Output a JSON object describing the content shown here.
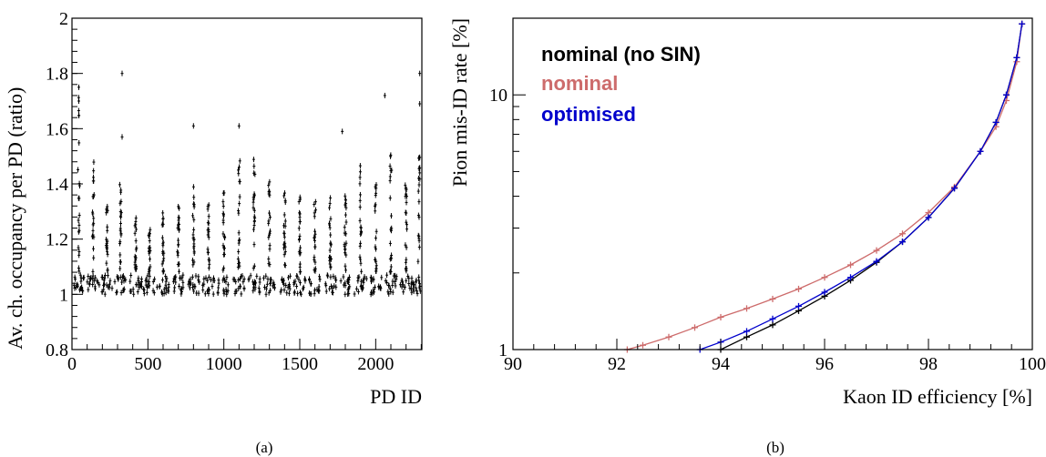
{
  "chart_data": [
    {
      "type": "scatter",
      "panel": "(a)",
      "xlabel": "PD ID",
      "ylabel": "Av. ch. occupancy per PD (ratio)",
      "xlim": [
        0,
        2304
      ],
      "ylim": [
        0.8,
        2.0
      ],
      "x_ticks": [
        0,
        500,
        1000,
        1500,
        2000
      ],
      "y_ticks": [
        0.8,
        1,
        1.2,
        1.4,
        1.6,
        1.8,
        2
      ],
      "y_tick_labels": [
        "0.8",
        "1",
        "1.2",
        "1.4",
        "1.6",
        "1.8",
        "2"
      ],
      "x_tick_labels": [
        "0",
        "500",
        "1000",
        "1500",
        "2000"
      ],
      "grid": false,
      "marker": "point with error bars",
      "groups": [
        {
          "x_center": 45,
          "y_low": 1.0,
          "y_high": 1.75
        },
        {
          "x_center": 140,
          "y_low": 1.0,
          "y_high": 1.48
        },
        {
          "x_center": 230,
          "y_low": 1.0,
          "y_high": 1.32
        },
        {
          "x_center": 320,
          "y_low": 1.0,
          "y_high": 1.4
        },
        {
          "x_center": 420,
          "y_low": 1.0,
          "y_high": 1.28
        },
        {
          "x_center": 510,
          "y_low": 1.0,
          "y_high": 1.24
        },
        {
          "x_center": 600,
          "y_low": 1.0,
          "y_high": 1.3
        },
        {
          "x_center": 700,
          "y_low": 1.0,
          "y_high": 1.32
        },
        {
          "x_center": 800,
          "y_low": 1.0,
          "y_high": 1.4
        },
        {
          "x_center": 900,
          "y_low": 1.0,
          "y_high": 1.34
        },
        {
          "x_center": 1000,
          "y_low": 1.0,
          "y_high": 1.4
        },
        {
          "x_center": 1100,
          "y_low": 1.0,
          "y_high": 1.5
        },
        {
          "x_center": 1200,
          "y_low": 1.0,
          "y_high": 1.5
        },
        {
          "x_center": 1300,
          "y_low": 1.0,
          "y_high": 1.42
        },
        {
          "x_center": 1400,
          "y_low": 1.0,
          "y_high": 1.4
        },
        {
          "x_center": 1500,
          "y_low": 1.0,
          "y_high": 1.36
        },
        {
          "x_center": 1600,
          "y_low": 1.0,
          "y_high": 1.34
        },
        {
          "x_center": 1700,
          "y_low": 1.0,
          "y_high": 1.36
        },
        {
          "x_center": 1800,
          "y_low": 1.0,
          "y_high": 1.4
        },
        {
          "x_center": 1900,
          "y_low": 1.0,
          "y_high": 1.5
        },
        {
          "x_center": 2000,
          "y_low": 1.0,
          "y_high": 1.4
        },
        {
          "x_center": 2100,
          "y_low": 1.0,
          "y_high": 1.52
        },
        {
          "x_center": 2200,
          "y_low": 1.0,
          "y_high": 1.4
        },
        {
          "x_center": 2285,
          "y_low": 1.0,
          "y_high": 1.52
        }
      ],
      "outliers": [
        {
          "x": 45,
          "y": 1.75
        },
        {
          "x": 45,
          "y": 1.7
        },
        {
          "x": 330,
          "y": 1.8
        },
        {
          "x": 330,
          "y": 1.57
        },
        {
          "x": 2060,
          "y": 1.72
        },
        {
          "x": 2290,
          "y": 1.8
        },
        {
          "x": 2290,
          "y": 1.69
        },
        {
          "x": 800,
          "y": 1.61
        },
        {
          "x": 1100,
          "y": 1.61
        },
        {
          "x": 1780,
          "y": 1.59
        }
      ]
    },
    {
      "type": "line",
      "panel": "(b)",
      "xlabel": "Kaon ID efficiency [%]",
      "ylabel": "Pion mis-ID rate [%]",
      "xlim": [
        90,
        100
      ],
      "ylim": [
        1,
        20
      ],
      "y_scale": "log",
      "x_ticks": [
        90,
        92,
        94,
        96,
        98,
        100
      ],
      "x_tick_labels": [
        "90",
        "92",
        "94",
        "96",
        "98",
        "100"
      ],
      "y_ticks": [
        1,
        10
      ],
      "y_tick_labels": [
        "1",
        "10"
      ],
      "grid": false,
      "legend_position": "top-left",
      "series": [
        {
          "name": "nominal (no SIN)",
          "color": "#000000",
          "x": [
            94.0,
            94.5,
            95.0,
            95.5,
            96.0,
            96.5,
            97.0,
            97.5,
            98.0,
            98.5,
            99.0,
            99.3,
            99.5,
            99.7,
            99.8
          ],
          "y": [
            1.0,
            1.12,
            1.25,
            1.42,
            1.62,
            1.87,
            2.2,
            2.65,
            3.3,
            4.3,
            6.0,
            7.8,
            10.0,
            14.0,
            19.0
          ]
        },
        {
          "name": "nominal",
          "color": "#cd6b6b",
          "x": [
            92.2,
            92.5,
            93.0,
            93.5,
            94.0,
            94.5,
            95.0,
            95.5,
            96.0,
            96.5,
            97.0,
            97.5,
            98.0,
            98.5,
            99.0,
            99.3,
            99.5,
            99.7,
            99.8
          ],
          "y": [
            1.0,
            1.04,
            1.12,
            1.22,
            1.34,
            1.45,
            1.58,
            1.73,
            1.92,
            2.15,
            2.45,
            2.85,
            3.45,
            4.35,
            6.0,
            7.5,
            9.5,
            13.5,
            19.0
          ]
        },
        {
          "name": "optimised",
          "color": "#0000cc",
          "x": [
            93.6,
            94.0,
            94.5,
            95.0,
            95.5,
            96.0,
            96.5,
            97.0,
            97.5,
            98.0,
            98.5,
            99.0,
            99.3,
            99.5,
            99.7,
            99.8
          ],
          "y": [
            1.0,
            1.07,
            1.18,
            1.32,
            1.48,
            1.68,
            1.92,
            2.22,
            2.65,
            3.3,
            4.3,
            6.0,
            7.8,
            10.0,
            14.0,
            19.0
          ]
        }
      ]
    }
  ],
  "captions": {
    "a": "(a)",
    "b": "(b)"
  }
}
